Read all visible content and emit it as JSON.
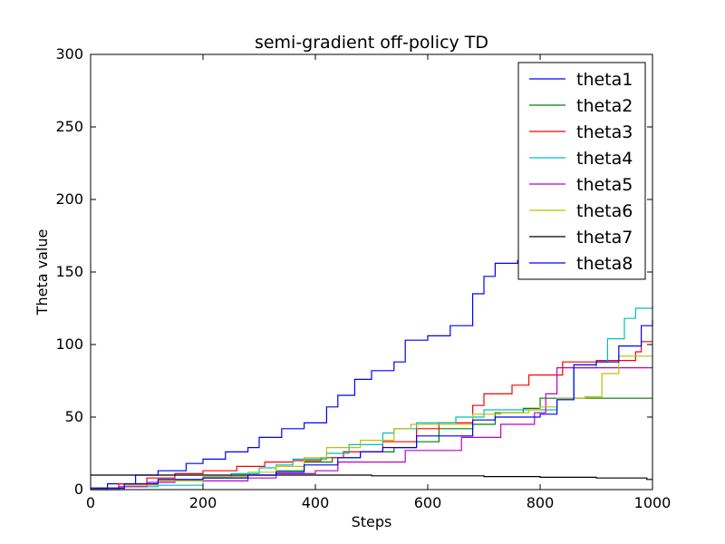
{
  "chart_data": {
    "type": "line",
    "title": "semi-gradient off-policy TD",
    "xlabel": "Steps",
    "ylabel": "Theta value",
    "xlim": [
      0,
      1000
    ],
    "ylim": [
      0,
      300
    ],
    "xticks": [
      0,
      200,
      400,
      600,
      800,
      1000
    ],
    "yticks": [
      0,
      50,
      100,
      150,
      200,
      250,
      300
    ],
    "grid": false,
    "legend_position": "top-right",
    "series": [
      {
        "name": "theta1",
        "color": "#0000ff",
        "points": [
          [
            0,
            0
          ],
          [
            30,
            4
          ],
          [
            80,
            10
          ],
          [
            120,
            13
          ],
          [
            170,
            18
          ],
          [
            200,
            21
          ],
          [
            240,
            26
          ],
          [
            280,
            29
          ],
          [
            300,
            36
          ],
          [
            340,
            42
          ],
          [
            380,
            46
          ],
          [
            420,
            57
          ],
          [
            440,
            65
          ],
          [
            470,
            76
          ],
          [
            500,
            82
          ],
          [
            540,
            88
          ],
          [
            560,
            103
          ],
          [
            600,
            106
          ],
          [
            640,
            113
          ],
          [
            680,
            135
          ],
          [
            700,
            147
          ],
          [
            720,
            156
          ],
          [
            760,
            158
          ],
          [
            780,
            167
          ],
          [
            790,
            172
          ]
        ]
      },
      {
        "name": "theta2",
        "color": "#008000",
        "points": [
          [
            0,
            0
          ],
          [
            60,
            4
          ],
          [
            120,
            7
          ],
          [
            200,
            8
          ],
          [
            280,
            10
          ],
          [
            330,
            13
          ],
          [
            380,
            19
          ],
          [
            430,
            22
          ],
          [
            480,
            26
          ],
          [
            540,
            29
          ],
          [
            580,
            33
          ],
          [
            620,
            42
          ],
          [
            680,
            45
          ],
          [
            720,
            53
          ],
          [
            770,
            56
          ],
          [
            800,
            63
          ],
          [
            1000,
            63
          ]
        ]
      },
      {
        "name": "theta3",
        "color": "#ff0000",
        "points": [
          [
            0,
            1
          ],
          [
            50,
            4
          ],
          [
            100,
            8
          ],
          [
            150,
            11
          ],
          [
            200,
            13
          ],
          [
            260,
            16
          ],
          [
            310,
            19
          ],
          [
            360,
            20
          ],
          [
            410,
            22
          ],
          [
            450,
            26
          ],
          [
            520,
            33
          ],
          [
            580,
            42
          ],
          [
            620,
            46
          ],
          [
            680,
            58
          ],
          [
            700,
            66
          ],
          [
            750,
            72
          ],
          [
            780,
            79
          ],
          [
            840,
            88
          ],
          [
            900,
            89
          ],
          [
            970,
            95
          ],
          [
            980,
            102
          ],
          [
            1000,
            102
          ]
        ]
      },
      {
        "name": "theta4",
        "color": "#00bfbf",
        "points": [
          [
            0,
            1
          ],
          [
            60,
            2
          ],
          [
            120,
            3
          ],
          [
            190,
            3
          ],
          [
            200,
            9
          ],
          [
            250,
            11
          ],
          [
            300,
            15
          ],
          [
            330,
            17
          ],
          [
            360,
            21
          ],
          [
            420,
            25
          ],
          [
            460,
            31
          ],
          [
            520,
            39
          ],
          [
            540,
            42
          ],
          [
            580,
            46
          ],
          [
            650,
            50
          ],
          [
            700,
            55
          ],
          [
            780,
            55
          ],
          [
            830,
            62
          ],
          [
            860,
            84
          ],
          [
            900,
            88
          ],
          [
            920,
            104
          ],
          [
            950,
            118
          ],
          [
            970,
            125
          ],
          [
            1000,
            127
          ]
        ]
      },
      {
        "name": "theta5",
        "color": "#bf00bf",
        "points": [
          [
            0,
            0
          ],
          [
            50,
            2
          ],
          [
            100,
            5
          ],
          [
            150,
            6
          ],
          [
            200,
            6
          ],
          [
            280,
            8
          ],
          [
            330,
            11
          ],
          [
            400,
            13
          ],
          [
            440,
            19
          ],
          [
            500,
            19
          ],
          [
            560,
            27
          ],
          [
            640,
            27
          ],
          [
            660,
            36
          ],
          [
            730,
            45
          ],
          [
            760,
            45
          ],
          [
            790,
            53
          ],
          [
            810,
            66
          ],
          [
            830,
            84
          ],
          [
            850,
            84
          ],
          [
            1000,
            84
          ]
        ]
      },
      {
        "name": "theta6",
        "color": "#bfbf00",
        "points": [
          [
            0,
            0
          ],
          [
            60,
            3
          ],
          [
            120,
            6
          ],
          [
            200,
            9
          ],
          [
            280,
            12
          ],
          [
            330,
            16
          ],
          [
            380,
            22
          ],
          [
            420,
            29
          ],
          [
            480,
            34
          ],
          [
            540,
            42
          ],
          [
            570,
            45
          ],
          [
            620,
            45
          ],
          [
            680,
            52
          ],
          [
            730,
            53
          ],
          [
            780,
            55
          ],
          [
            800,
            57
          ],
          [
            830,
            63
          ],
          [
            880,
            64
          ],
          [
            900,
            64
          ],
          [
            910,
            80
          ],
          [
            940,
            92
          ],
          [
            1000,
            92
          ]
        ]
      },
      {
        "name": "theta7",
        "color": "#000000",
        "points": [
          [
            0,
            10
          ],
          [
            100,
            10
          ],
          [
            200,
            10
          ],
          [
            300,
            10
          ],
          [
            400,
            10
          ],
          [
            500,
            9.5
          ],
          [
            600,
            9.5
          ],
          [
            700,
            9
          ],
          [
            800,
            8.5
          ],
          [
            900,
            8
          ],
          [
            980,
            8
          ],
          [
            990,
            7
          ],
          [
            1000,
            7
          ]
        ]
      },
      {
        "name": "theta8",
        "color": "#0000ff",
        "points": [
          [
            0,
            1
          ],
          [
            60,
            4
          ],
          [
            120,
            7
          ],
          [
            200,
            8
          ],
          [
            280,
            10
          ],
          [
            330,
            12
          ],
          [
            380,
            17
          ],
          [
            440,
            22
          ],
          [
            480,
            26
          ],
          [
            520,
            29
          ],
          [
            580,
            37
          ],
          [
            650,
            37
          ],
          [
            680,
            48
          ],
          [
            720,
            50
          ],
          [
            800,
            52
          ],
          [
            830,
            62
          ],
          [
            860,
            86
          ],
          [
            900,
            88
          ],
          [
            940,
            99
          ],
          [
            980,
            113
          ],
          [
            1000,
            117
          ]
        ]
      }
    ]
  }
}
